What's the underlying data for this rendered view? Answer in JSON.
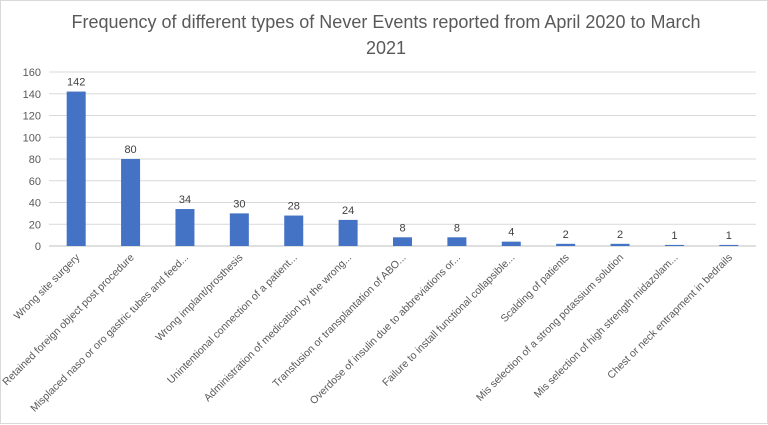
{
  "chart_data": {
    "type": "bar",
    "title": "Frequency of different types of Never Events reported from April 2020 to March 2021",
    "xlabel": "",
    "ylabel": "",
    "ylim": [
      0,
      160
    ],
    "yticks": [
      0,
      20,
      40,
      60,
      80,
      100,
      120,
      140,
      160
    ],
    "grid": true,
    "bar_color": "#4472c4",
    "categories": [
      "Wrong site surgery",
      "Retained foreign object post procedure",
      "Misplaced naso or oro gastric tubes and feed...",
      "Wrong implant/prosthesis",
      "Unintentional connection of a patient...",
      "Administration of medication by the wrong...",
      "Transfusion or transplantation of ABO...",
      "Overdose of insulin due to abbreviations or...",
      "Failure to install functional collapsible...",
      "Scalding of patients",
      "Mis selection of a strong potassium solution",
      "Mis selection of high strength midazolam...",
      "Chest or neck entrapment in bedrails"
    ],
    "values": [
      142,
      80,
      34,
      30,
      28,
      24,
      8,
      8,
      4,
      2,
      2,
      1,
      1
    ]
  }
}
